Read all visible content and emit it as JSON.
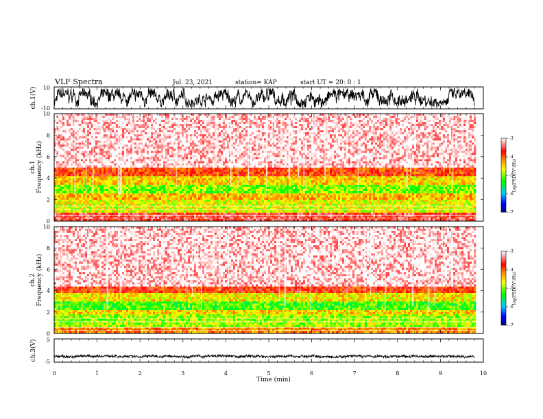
{
  "header": {
    "title": "VLF Spectra",
    "date": "Jul. 23, 2021",
    "station": "station= KAP",
    "start": "start  UT =   20: 0  : 1"
  },
  "chart_data": [
    {
      "type": "line",
      "panel": "ch1-waveform",
      "ylabel": "ch.1(V)",
      "ylim": [
        -10,
        10
      ],
      "yticks": [
        "10",
        "-10"
      ],
      "xlim": [
        0,
        10
      ],
      "x_extent_min": 9.8,
      "envelope": "broad noisy trace filling roughly -8 to +8 V"
    },
    {
      "type": "heatmap",
      "panel": "ch1-spectrogram",
      "ylabel_line1": "ch.1",
      "ylabel_line2": "Frequency (kHz)",
      "ylim": [
        0,
        10
      ],
      "yticks": [
        "0",
        "2",
        "4",
        "6",
        "8",
        "10"
      ],
      "xlim": [
        0,
        10
      ],
      "x_extent_min": 9.8,
      "bands_khz": [
        {
          "from": 0.0,
          "to": 0.8,
          "level": -3.6
        },
        {
          "from": 0.8,
          "to": 2.0,
          "level": -4.7
        },
        {
          "from": 2.0,
          "to": 2.6,
          "level": -4.4
        },
        {
          "from": 2.6,
          "to": 3.4,
          "level": -5.0
        },
        {
          "from": 3.4,
          "to": 4.2,
          "level": -4.5
        },
        {
          "from": 4.2,
          "to": 5.0,
          "level": -3.9
        },
        {
          "from": 5.0,
          "to": 10.0,
          "level": -3.1
        }
      ],
      "colorbar": {
        "label": "log(PSD)(V²/Hz)",
        "ticks": [
          "-3",
          "-4",
          "-5",
          "-6",
          "-7"
        ],
        "range": [
          -7,
          -3
        ]
      }
    },
    {
      "type": "heatmap",
      "panel": "ch2-spectrogram",
      "ylabel_line1": "ch.2",
      "ylabel_line2": "Frequency (kHz)",
      "ylim": [
        0,
        10
      ],
      "yticks": [
        "0",
        "2",
        "4",
        "6",
        "8",
        "10"
      ],
      "xlim": [
        0,
        10
      ],
      "x_extent_min": 9.8,
      "bands_khz": [
        {
          "from": 0.0,
          "to": 0.6,
          "level": -4.2
        },
        {
          "from": 0.6,
          "to": 1.8,
          "level": -4.9
        },
        {
          "from": 1.8,
          "to": 2.2,
          "level": -4.5
        },
        {
          "from": 2.2,
          "to": 3.0,
          "level": -5.2
        },
        {
          "from": 3.0,
          "to": 3.8,
          "level": -4.6
        },
        {
          "from": 3.8,
          "to": 4.4,
          "level": -3.8
        },
        {
          "from": 4.4,
          "to": 10.0,
          "level": -3.1
        }
      ],
      "colorbar": {
        "label": "log(PSD)(V²/Hz)",
        "ticks": [
          "-3",
          "-4",
          "-5",
          "-6",
          "-7"
        ],
        "range": [
          -7,
          -3
        ]
      }
    },
    {
      "type": "line",
      "panel": "ch3-waveform",
      "ylabel": "ch.3(V)",
      "ylim": [
        -5,
        5
      ],
      "yticks": [
        "5",
        "-5"
      ],
      "xlim": [
        0,
        10
      ],
      "x_extent_min": 9.8,
      "envelope": "thin band near -2.5 V"
    }
  ],
  "xaxis": {
    "label": "Time (min)",
    "ticks": [
      "0",
      "1",
      "2",
      "3",
      "4",
      "5",
      "6",
      "7",
      "8",
      "9",
      "10"
    ]
  },
  "colors": {
    "trace": "#000000",
    "colormap": [
      "#000080",
      "#0000ff",
      "#00c0ff",
      "#00ff00",
      "#c8ff00",
      "#ffff00",
      "#ff8000",
      "#ff0000",
      "#ffffff"
    ]
  }
}
